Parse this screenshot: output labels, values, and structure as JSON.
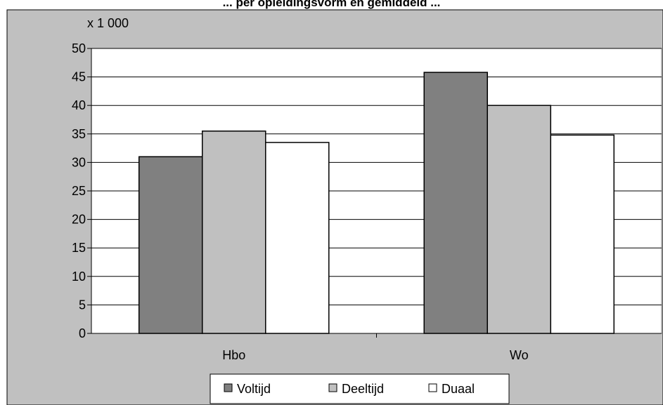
{
  "chart_data": {
    "type": "bar",
    "title": "... per opleidingsvorm en gemiddeld ...",
    "unit_label": "x 1 000",
    "categories": [
      "Hbo",
      "Wo"
    ],
    "series": [
      {
        "name": "Voltijd",
        "color": "#808080",
        "values": [
          31,
          45.8
        ]
      },
      {
        "name": "Deeltijd",
        "color": "#c0c0c0",
        "values": [
          35.5,
          40
        ]
      },
      {
        "name": "Duaal",
        "color": "#ffffff",
        "values": [
          33.5,
          34.8
        ]
      }
    ],
    "ylim": [
      0,
      50
    ],
    "yticks": [
      "0",
      "5",
      "10",
      "15",
      "20",
      "25",
      "30",
      "35",
      "40",
      "45",
      "50"
    ],
    "grid": true,
    "legend_position": "bottom",
    "colors": {
      "outer_background": "#c0c0c0",
      "plot_background": "#ffffff",
      "axis": "#000000"
    }
  }
}
